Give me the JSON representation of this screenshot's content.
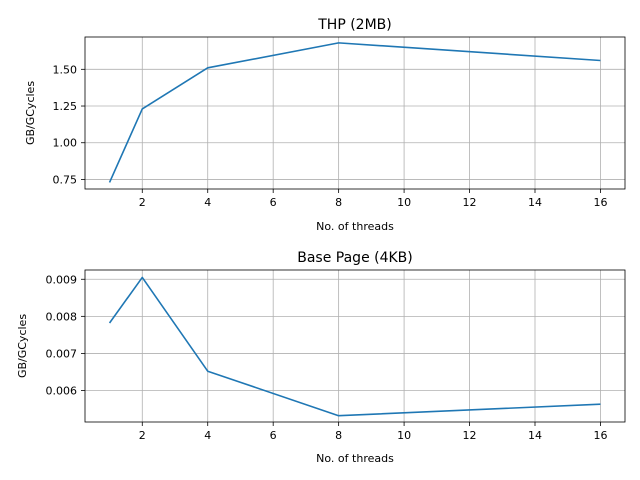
{
  "chart_data": [
    {
      "type": "line",
      "title": "THP (2MB)",
      "xlabel": "No. of threads",
      "ylabel": "GB/GCycles",
      "grid": true,
      "xlim": [
        0.25,
        16.75
      ],
      "ylim": [
        0.685,
        1.72
      ],
      "xticks": [
        2,
        4,
        6,
        8,
        10,
        12,
        14,
        16
      ],
      "yticks": [
        0.75,
        1.0,
        1.25,
        1.5
      ],
      "ytick_labels": [
        "0.75",
        "1.00",
        "1.25",
        "1.50"
      ],
      "color": "#1f77b4",
      "x": [
        1,
        2,
        4,
        8,
        16
      ],
      "y": [
        0.73,
        1.23,
        1.51,
        1.68,
        1.56
      ]
    },
    {
      "type": "line",
      "title": "Base Page (4KB)",
      "xlabel": "No. of threads",
      "ylabel": "GB/GCycles",
      "grid": true,
      "xlim": [
        0.25,
        16.75
      ],
      "ylim": [
        0.00515,
        0.00925
      ],
      "xticks": [
        2,
        4,
        6,
        8,
        10,
        12,
        14,
        16
      ],
      "yticks": [
        0.006,
        0.007,
        0.008,
        0.009
      ],
      "ytick_labels": [
        "0.006",
        "0.007",
        "0.008",
        "0.009"
      ],
      "color": "#1f77b4",
      "x": [
        1,
        2,
        4,
        8,
        16
      ],
      "y": [
        0.00782,
        0.00905,
        0.00652,
        0.00532,
        0.00563
      ]
    }
  ]
}
